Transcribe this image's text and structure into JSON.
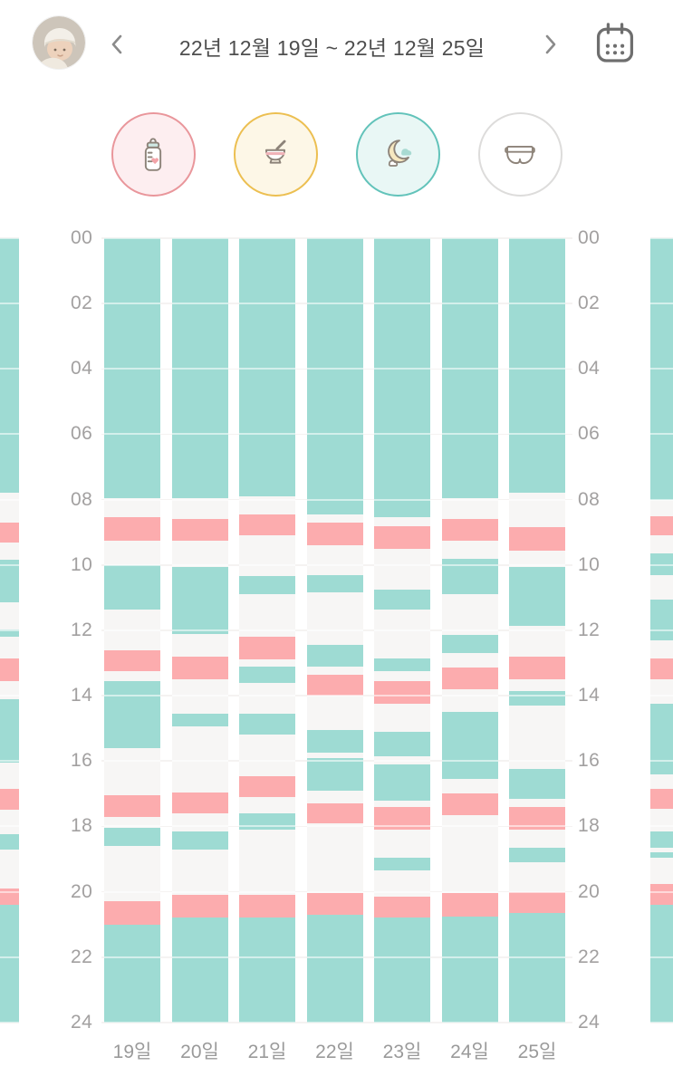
{
  "header": {
    "title": "22년 12월 19일 ~ 22년 12월 25일"
  },
  "filters": [
    {
      "name": "feeding",
      "icon": "bottle-icon",
      "ring_color": "#e9969b",
      "bg_color": "#fdeef0"
    },
    {
      "name": "food",
      "icon": "bowl-icon",
      "ring_color": "#ecbf51",
      "bg_color": "#fdf7e7"
    },
    {
      "name": "sleep",
      "icon": "moon-icon",
      "ring_color": "#62c3ba",
      "bg_color": "#e9f7f5"
    },
    {
      "name": "diaper",
      "icon": "diaper-icon",
      "ring_color": "#dddcdb",
      "bg_color": "#ffffff"
    }
  ],
  "chart_data": {
    "type": "weekly-activity-timeline",
    "hours_range": [
      0,
      24
    ],
    "hour_ticks": [
      "00",
      "02",
      "04",
      "06",
      "08",
      "10",
      "12",
      "14",
      "16",
      "18",
      "20",
      "22",
      "24"
    ],
    "legend": {
      "sleep": "sleep-block",
      "feeding": "feeding-block"
    },
    "colors": {
      "sleep": "#9edbd3",
      "feeding": "#fcacae",
      "empty": "#f7f6f5",
      "grid": "#e8e5e3",
      "grid_on_block": "rgba(255,255,255,0.55)",
      "axis_text": "#a2a0a0"
    },
    "days": [
      {
        "label": "",
        "edge": "left",
        "segments": [
          [
            0,
            7.8,
            "sleep"
          ],
          [
            8.7,
            9.3,
            "feeding"
          ],
          [
            9.85,
            11.15,
            "sleep"
          ],
          [
            11.98,
            12.2,
            "sleep"
          ],
          [
            12.85,
            13.55,
            "feeding"
          ],
          [
            14.1,
            16.05,
            "sleep"
          ],
          [
            16.85,
            17.5,
            "feeding"
          ],
          [
            18.25,
            18.7,
            "sleep"
          ],
          [
            19.9,
            20.4,
            "feeding"
          ],
          [
            20.4,
            24,
            "sleep"
          ]
        ]
      },
      {
        "label": "19일",
        "edge": "",
        "segments": [
          [
            0,
            7.95,
            "sleep"
          ],
          [
            8.55,
            9.25,
            "feeding"
          ],
          [
            10.0,
            11.35,
            "sleep"
          ],
          [
            12.6,
            13.25,
            "feeding"
          ],
          [
            13.55,
            15.6,
            "sleep"
          ],
          [
            17.05,
            17.7,
            "feeding"
          ],
          [
            18.05,
            18.6,
            "sleep"
          ],
          [
            20.3,
            21.0,
            "feeding"
          ],
          [
            21.0,
            24,
            "sleep"
          ]
        ]
      },
      {
        "label": "20일",
        "edge": "",
        "segments": [
          [
            0,
            7.95,
            "sleep"
          ],
          [
            8.6,
            9.25,
            "feeding"
          ],
          [
            10.05,
            12.1,
            "sleep"
          ],
          [
            12.8,
            13.5,
            "feeding"
          ],
          [
            14.55,
            14.95,
            "sleep"
          ],
          [
            16.95,
            17.6,
            "feeding"
          ],
          [
            18.15,
            18.7,
            "sleep"
          ],
          [
            20.1,
            20.8,
            "feeding"
          ],
          [
            20.8,
            24,
            "sleep"
          ]
        ]
      },
      {
        "label": "21일",
        "edge": "",
        "segments": [
          [
            0,
            7.9,
            "sleep"
          ],
          [
            8.45,
            9.1,
            "feeding"
          ],
          [
            10.35,
            10.9,
            "sleep"
          ],
          [
            12.2,
            12.9,
            "feeding"
          ],
          [
            13.1,
            13.6,
            "sleep"
          ],
          [
            14.55,
            15.2,
            "sleep"
          ],
          [
            16.45,
            17.1,
            "feeding"
          ],
          [
            17.6,
            18.1,
            "sleep"
          ],
          [
            20.1,
            20.8,
            "feeding"
          ],
          [
            20.8,
            24,
            "sleep"
          ]
        ]
      },
      {
        "label": "22일",
        "edge": "",
        "segments": [
          [
            0,
            8.45,
            "sleep"
          ],
          [
            8.7,
            9.4,
            "feeding"
          ],
          [
            10.3,
            10.85,
            "sleep"
          ],
          [
            12.45,
            13.1,
            "sleep"
          ],
          [
            13.35,
            14.0,
            "feeding"
          ],
          [
            15.05,
            15.75,
            "sleep"
          ],
          [
            15.9,
            16.9,
            "sleep"
          ],
          [
            17.3,
            17.9,
            "feeding"
          ],
          [
            20.05,
            20.7,
            "feeding"
          ],
          [
            20.7,
            24,
            "sleep"
          ]
        ]
      },
      {
        "label": "23일",
        "edge": "",
        "segments": [
          [
            0,
            8.55,
            "sleep"
          ],
          [
            8.8,
            9.5,
            "feeding"
          ],
          [
            10.75,
            11.35,
            "sleep"
          ],
          [
            12.85,
            13.25,
            "sleep"
          ],
          [
            13.55,
            14.25,
            "feeding"
          ],
          [
            15.1,
            15.85,
            "sleep"
          ],
          [
            16.1,
            17.2,
            "sleep"
          ],
          [
            17.4,
            18.1,
            "feeding"
          ],
          [
            18.95,
            19.35,
            "sleep"
          ],
          [
            20.15,
            20.8,
            "feeding"
          ],
          [
            20.8,
            24,
            "sleep"
          ]
        ]
      },
      {
        "label": "24일",
        "edge": "",
        "segments": [
          [
            0,
            7.95,
            "sleep"
          ],
          [
            8.6,
            9.25,
            "feeding"
          ],
          [
            9.8,
            10.9,
            "sleep"
          ],
          [
            12.15,
            12.7,
            "sleep"
          ],
          [
            13.15,
            13.8,
            "feeding"
          ],
          [
            14.5,
            16.55,
            "sleep"
          ],
          [
            17.0,
            17.65,
            "feeding"
          ],
          [
            20.05,
            20.75,
            "feeding"
          ],
          [
            20.75,
            24,
            "sleep"
          ]
        ]
      },
      {
        "label": "25일",
        "edge": "",
        "segments": [
          [
            0,
            7.8,
            "sleep"
          ],
          [
            8.85,
            9.55,
            "feeding"
          ],
          [
            10.05,
            11.85,
            "sleep"
          ],
          [
            12.8,
            13.5,
            "feeding"
          ],
          [
            13.85,
            14.3,
            "sleep"
          ],
          [
            16.25,
            17.15,
            "sleep"
          ],
          [
            17.4,
            18.1,
            "feeding"
          ],
          [
            18.65,
            19.1,
            "sleep"
          ],
          [
            20.0,
            20.65,
            "feeding"
          ],
          [
            20.65,
            24,
            "sleep"
          ]
        ]
      },
      {
        "label": "",
        "edge": "right",
        "segments": [
          [
            0,
            8.0,
            "sleep"
          ],
          [
            8.5,
            9.1,
            "feeding"
          ],
          [
            9.65,
            10.3,
            "sleep"
          ],
          [
            11.05,
            12.3,
            "sleep"
          ],
          [
            12.85,
            13.5,
            "feeding"
          ],
          [
            14.25,
            16.4,
            "sleep"
          ],
          [
            16.85,
            17.45,
            "feeding"
          ],
          [
            18.15,
            18.65,
            "sleep"
          ],
          [
            18.8,
            18.95,
            "sleep"
          ],
          [
            19.75,
            20.4,
            "feeding"
          ],
          [
            20.4,
            24,
            "sleep"
          ]
        ]
      }
    ]
  }
}
